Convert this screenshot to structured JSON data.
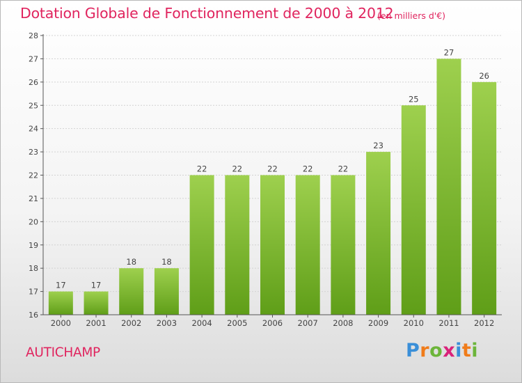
{
  "header": {
    "title": "Dotation Globale de Fonctionnement de 2000 à 2012",
    "unit": "(en milliers d'€)"
  },
  "footer": {
    "commune": "AUTICHAMP",
    "logo_text": "Proxiti",
    "logo_letters": [
      "P",
      "r",
      "o",
      "x",
      "i",
      "t",
      "i"
    ],
    "logo_colors": [
      "#3a8fd8",
      "#f07c1a",
      "#6cb53a",
      "#d9227a",
      "#3a8fd8",
      "#f07c1a",
      "#6cb53a"
    ]
  },
  "colors": {
    "title": "#e0245e",
    "bar_top": "#9ed04e",
    "bar_bottom": "#5f9e18",
    "axis": "#555555",
    "grid": "#d2d2d2"
  },
  "chart_data": {
    "type": "bar",
    "categories": [
      "2000",
      "2001",
      "2002",
      "2003",
      "2004",
      "2005",
      "2006",
      "2007",
      "2008",
      "2009",
      "2010",
      "2011",
      "2012"
    ],
    "values": [
      17,
      17,
      18,
      18,
      22,
      22,
      22,
      22,
      22,
      23,
      25,
      27,
      26
    ],
    "ylim": [
      16,
      28
    ],
    "yticks": [
      16,
      17,
      18,
      19,
      20,
      21,
      22,
      23,
      24,
      25,
      26,
      27,
      28
    ],
    "grid": true,
    "legend": "none"
  }
}
